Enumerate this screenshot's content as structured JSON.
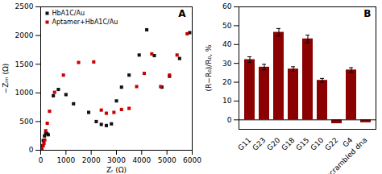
{
  "chart_data": [
    {
      "type": "scatter",
      "title": "A",
      "xlabel": "Zᵣ (Ω)",
      "ylabel": "−Zᵢₘ (Ω)",
      "xlim": [
        0,
        6000
      ],
      "ylim": [
        0,
        2500
      ],
      "xticks": [
        0,
        1000,
        2000,
        3000,
        4000,
        5000,
        6000
      ],
      "yticks": [
        0,
        500,
        1000,
        1500,
        2000,
        2500
      ],
      "grid": false,
      "legend": "upper left",
      "series": [
        {
          "name": "HbA1C/Au",
          "color": "#111111",
          "marker": "square",
          "x": [
            50,
            100,
            150,
            200,
            250,
            300,
            500,
            700,
            1000,
            1300,
            1900,
            2200,
            2400,
            2600,
            2800,
            3000,
            3200,
            3500,
            3900,
            4200,
            4500,
            4800,
            5100,
            5500,
            5900
          ],
          "values": [
            80,
            170,
            250,
            300,
            290,
            270,
            950,
            1060,
            970,
            810,
            660,
            500,
            450,
            430,
            460,
            860,
            1100,
            1310,
            1660,
            2100,
            1650,
            1100,
            1290,
            1600,
            2050
          ]
        },
        {
          "name": "Aptamer+HbA1C/Au",
          "color": "#cc0000",
          "marker": "square",
          "x": [
            50,
            100,
            130,
            160,
            200,
            260,
            350,
            550,
            900,
            1500,
            2100,
            2400,
            2600,
            2900,
            3200,
            3500,
            3800,
            4100,
            4400,
            4750,
            5100,
            5400,
            5800
          ],
          "values": [
            30,
            80,
            120,
            180,
            340,
            470,
            680,
            1010,
            1310,
            1530,
            1540,
            700,
            645,
            660,
            710,
            730,
            1110,
            1340,
            1680,
            1110,
            1310,
            1660,
            2030
          ]
        }
      ]
    },
    {
      "type": "bar",
      "title": "B",
      "ylabel": "(R−R₀)/R₀, %",
      "categories": [
        "G11",
        "G23",
        "G20",
        "G18",
        "G15",
        "G10",
        "G22",
        "G4",
        "scrambled dna"
      ],
      "values": [
        32,
        28,
        46.5,
        27,
        43,
        21,
        -2,
        26.5,
        -1.5
      ],
      "errors": [
        1.5,
        1.5,
        2.0,
        1.2,
        2.0,
        1.0,
        null,
        1.2,
        null
      ],
      "color": "#8b0000",
      "ylim": [
        -5,
        60
      ],
      "yticks": [
        0,
        10,
        20,
        30,
        40,
        50,
        60
      ],
      "grid": false
    }
  ]
}
